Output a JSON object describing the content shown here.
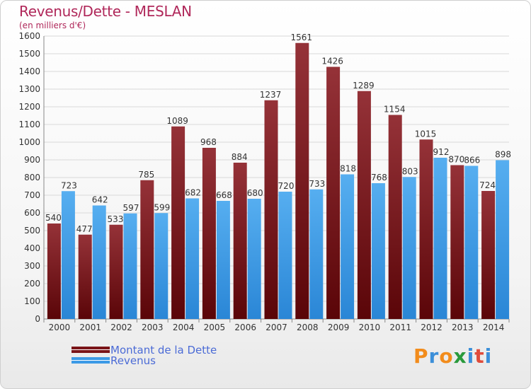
{
  "header": {
    "title": "Revenus/Dette - MESLAN",
    "subtitle": "(en milliers d'€)"
  },
  "colors": {
    "dette": "#7a1418",
    "revenus": "#3c9ae6",
    "title": "#b0285a",
    "legend_text": "#4b6bd6"
  },
  "chart_data": {
    "type": "bar",
    "title": "Revenus/Dette - MESLAN",
    "ylabel": "(en milliers d'€)",
    "xlabel": "",
    "ylim": [
      0,
      1600
    ],
    "ytick_step": 100,
    "grid": true,
    "legend_position": "bottom-left",
    "categories": [
      "2000",
      "2001",
      "2002",
      "2003",
      "2004",
      "2005",
      "2006",
      "2007",
      "2008",
      "2009",
      "2010",
      "2011",
      "2012",
      "2013",
      "2014"
    ],
    "series": [
      {
        "name": "Montant de la Dette",
        "color": "#7a1418",
        "values": [
          540,
          477,
          533,
          785,
          1089,
          968,
          884,
          1237,
          1561,
          1426,
          1289,
          1154,
          1015,
          870,
          724
        ]
      },
      {
        "name": "Revenus",
        "color": "#3c9ae6",
        "values": [
          723,
          642,
          597,
          599,
          682,
          668,
          680,
          720,
          733,
          818,
          768,
          803,
          912,
          866,
          898
        ]
      }
    ]
  },
  "legend": {
    "items": [
      {
        "label": "Montant de la Dette"
      },
      {
        "label": "Revenus"
      }
    ]
  },
  "brand": {
    "letters": [
      "P",
      "r",
      "o",
      "x",
      "i",
      "t",
      "i"
    ],
    "colors": [
      "#f28c1c",
      "#3c8fd9",
      "#f28c1c",
      "#2a9a3c",
      "#3c8fd9",
      "#e04b3a",
      "#3c8fd9"
    ]
  }
}
